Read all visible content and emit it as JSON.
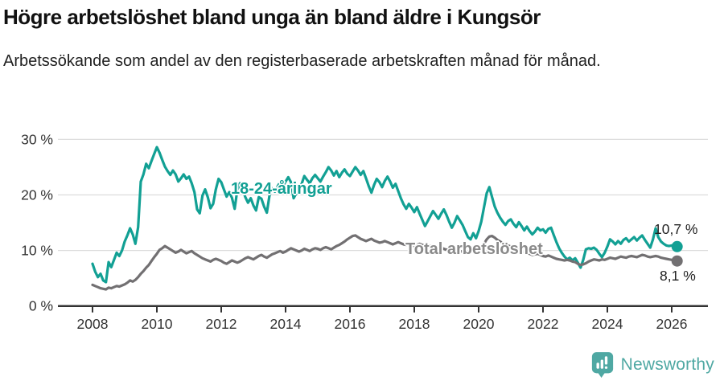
{
  "header": {
    "title": "Högre arbetslöshet bland unga än bland äldre i Kungsör",
    "subtitle": "Arbetssökande som andel av den registerbaserade arbetskraften månad för månad."
  },
  "colors": {
    "youth": "#12a094",
    "total": "#727072",
    "grid": "#dcdcdc",
    "axis": "#333333",
    "text": "#222222",
    "youth_label": "#12a094",
    "total_label": "#8a8a8a",
    "logo": "#4fa8a3"
  },
  "footer": {
    "brand": "Newsworthy"
  },
  "chart_data": {
    "type": "line",
    "title": "Högre arbetslöshet bland unga än bland äldre i Kungsör",
    "subtitle": "Arbetssökande som andel av den registerbaserade arbetskraften månad för månad.",
    "frequency": "monthly",
    "x_start": {
      "year": 2008,
      "month": 1
    },
    "x_end": {
      "year": 2026,
      "month": 3
    },
    "x_ticks": [
      2008,
      2010,
      2012,
      2014,
      2016,
      2018,
      2020,
      2022,
      2024,
      2026
    ],
    "y_ticks": [
      0,
      10,
      20,
      30
    ],
    "y_tick_suffix": " %",
    "ylim": [
      0,
      32
    ],
    "grid": true,
    "legend_position": "inline-labels",
    "series": [
      {
        "key": "youth",
        "name": "18-24-åringar",
        "color": "#12a094",
        "end_label": "10,7 %",
        "end_value": 10.7,
        "values": [
          7.6,
          6.2,
          5.2,
          5.8,
          4.6,
          4.3,
          7.9,
          7.0,
          8.3,
          9.6,
          9.0,
          10.0,
          11.6,
          12.7,
          14.0,
          12.9,
          11.2,
          14.2,
          22.4,
          23.7,
          25.6,
          24.8,
          26.1,
          27.4,
          28.6,
          27.6,
          26.3,
          25.1,
          24.3,
          23.6,
          24.4,
          23.7,
          22.4,
          23.0,
          23.7,
          22.9,
          23.3,
          22.1,
          20.5,
          17.4,
          16.7,
          19.9,
          21.0,
          19.6,
          17.6,
          18.4,
          21.0,
          22.9,
          22.3,
          21.0,
          19.7,
          20.5,
          19.5,
          17.5,
          20.9,
          22.1,
          21.0,
          19.6,
          18.6,
          19.4,
          18.1,
          17.2,
          19.6,
          19.3,
          17.9,
          16.8,
          19.9,
          21.2,
          20.6,
          21.5,
          22.3,
          21.6,
          22.4,
          23.2,
          22.3,
          19.4,
          20.3,
          21.4,
          22.0,
          23.4,
          22.7,
          22.1,
          23.0,
          23.6,
          23.0,
          22.4,
          23.3,
          24.1,
          25.0,
          24.4,
          23.5,
          24.3,
          23.2,
          24.0,
          24.6,
          23.8,
          23.4,
          24.2,
          25.0,
          24.4,
          23.6,
          24.3,
          23.0,
          21.6,
          20.4,
          21.8,
          22.9,
          22.3,
          21.4,
          22.5,
          23.3,
          22.4,
          21.3,
          22.0,
          20.7,
          19.4,
          18.3,
          17.5,
          18.4,
          17.7,
          16.9,
          17.8,
          16.6,
          15.5,
          14.4,
          15.3,
          16.2,
          17.1,
          16.4,
          15.7,
          16.6,
          17.4,
          16.4,
          15.2,
          14.1,
          15.0,
          16.2,
          15.4,
          14.6,
          13.5,
          12.4,
          12.0,
          13.1,
          12.2,
          13.5,
          15.2,
          17.8,
          20.3,
          21.4,
          19.6,
          17.9,
          16.8,
          15.9,
          15.2,
          14.6,
          15.3,
          15.6,
          14.8,
          14.2,
          15.1,
          14.4,
          13.6,
          14.3,
          13.5,
          12.9,
          13.4,
          14.1,
          13.6,
          13.8,
          13.2,
          13.9,
          14.1,
          12.8,
          11.5,
          10.4,
          9.6,
          8.9,
          8.4,
          8.7,
          8.2,
          8.6,
          7.8,
          6.9,
          8.3,
          10.2,
          10.4,
          10.3,
          10.5,
          10.1,
          9.4,
          8.8,
          9.6,
          10.7,
          12.0,
          11.6,
          11.1,
          11.7,
          11.2,
          11.9,
          12.2,
          11.6,
          12.0,
          12.4,
          11.8,
          12.3,
          12.7,
          11.9,
          11.2,
          10.5,
          12.0,
          14.0,
          12.4,
          11.6,
          11.2,
          10.9,
          10.8,
          10.9,
          10.8,
          10.7
        ]
      },
      {
        "key": "total",
        "name": "Total arbetslöshet",
        "color": "#727072",
        "end_label": "8,1 %",
        "end_value": 8.1,
        "values": [
          3.8,
          3.6,
          3.4,
          3.2,
          3.1,
          3.0,
          3.3,
          3.2,
          3.4,
          3.6,
          3.5,
          3.7,
          3.9,
          4.2,
          4.6,
          4.4,
          4.7,
          5.2,
          5.8,
          6.3,
          6.9,
          7.4,
          8.1,
          8.8,
          9.4,
          10.1,
          10.4,
          10.8,
          10.5,
          10.2,
          9.9,
          9.6,
          9.8,
          10.1,
          9.8,
          9.5,
          9.7,
          9.9,
          9.5,
          9.2,
          8.9,
          8.6,
          8.4,
          8.2,
          8.0,
          8.3,
          8.5,
          8.3,
          8.1,
          7.8,
          7.6,
          7.9,
          8.2,
          8.0,
          7.8,
          8.0,
          8.3,
          8.6,
          8.8,
          8.6,
          8.4,
          8.7,
          9.0,
          9.2,
          8.9,
          8.7,
          9.0,
          9.3,
          9.5,
          9.7,
          9.9,
          9.6,
          9.8,
          10.1,
          10.4,
          10.2,
          10.0,
          9.8,
          10.0,
          10.3,
          10.1,
          9.9,
          10.2,
          10.4,
          10.3,
          10.1,
          10.4,
          10.6,
          10.4,
          10.2,
          10.5,
          10.8,
          11.0,
          11.3,
          11.6,
          12.0,
          12.3,
          12.6,
          12.7,
          12.4,
          12.1,
          11.9,
          11.7,
          11.9,
          12.1,
          11.8,
          11.6,
          11.4,
          11.5,
          11.7,
          11.5,
          11.3,
          11.1,
          11.3,
          11.5,
          11.3,
          11.1,
          11.0,
          11.2,
          11.0,
          10.8,
          11.0,
          11.2,
          11.0,
          10.8,
          10.6,
          10.8,
          10.6,
          10.4,
          10.3,
          10.5,
          10.3,
          10.1,
          10.3,
          10.1,
          9.9,
          10.1,
          9.9,
          9.8,
          10.0,
          9.8,
          9.7,
          9.9,
          10.1,
          10.3,
          10.6,
          11.2,
          12.0,
          12.5,
          12.6,
          12.3,
          11.9,
          11.6,
          11.3,
          11.1,
          10.9,
          10.7,
          10.5,
          10.3,
          10.1,
          9.9,
          9.7,
          9.5,
          9.4,
          9.2,
          9.3,
          9.4,
          9.2,
          9.0,
          8.9,
          9.1,
          8.9,
          8.7,
          8.5,
          8.4,
          8.3,
          8.2,
          8.3,
          8.2,
          8.0,
          7.9,
          7.6,
          7.4,
          7.5,
          7.7,
          8.0,
          8.2,
          8.4,
          8.3,
          8.2,
          8.4,
          8.3,
          8.5,
          8.7,
          8.6,
          8.5,
          8.7,
          8.9,
          8.8,
          8.7,
          8.9,
          9.0,
          8.9,
          8.8,
          9.0,
          9.2,
          9.1,
          8.9,
          8.8,
          8.9,
          9.0,
          8.9,
          8.7,
          8.6,
          8.5,
          8.4,
          8.3,
          8.2,
          8.1
        ]
      }
    ]
  }
}
